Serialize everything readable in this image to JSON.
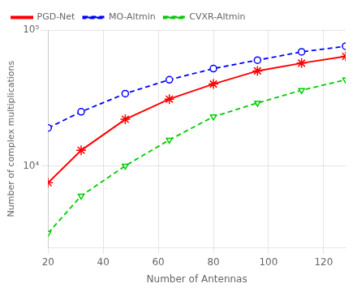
{
  "chart_data": {
    "type": "line",
    "x": [
      20,
      32,
      48,
      64,
      80,
      96,
      112,
      128
    ],
    "series": [
      {
        "name": "PGD-Net",
        "color": "#ff0000",
        "marker": "star",
        "line_style": "solid",
        "values": [
          7500,
          13000,
          22000,
          31000,
          40000,
          50000,
          57000,
          64000
        ]
      },
      {
        "name": "MO-Altmin",
        "color": "#0000ff",
        "marker": "circle",
        "line_style": "dashed",
        "values": [
          19000,
          25000,
          34000,
          43000,
          52000,
          60000,
          69000,
          76000
        ]
      },
      {
        "name": "CVXR-Altmin",
        "color": "#00cc00",
        "marker": "triangle_down",
        "line_style": "dashed",
        "values": [
          3200,
          6000,
          10000,
          15500,
          23000,
          29000,
          36000,
          43000
        ]
      }
    ],
    "xlabel": "Number of Antennas",
    "ylabel": "Number of complex multiplications",
    "xlim": [
      20,
      128
    ],
    "ylim": [
      2500,
      100000
    ],
    "xticks": [
      20,
      40,
      60,
      80,
      100,
      120
    ],
    "yticks": [
      {
        "value": 10000,
        "label": "10⁴"
      },
      {
        "value": 100000,
        "label": "10⁵"
      }
    ],
    "log": "y",
    "grid": true,
    "legend": "upper left"
  }
}
